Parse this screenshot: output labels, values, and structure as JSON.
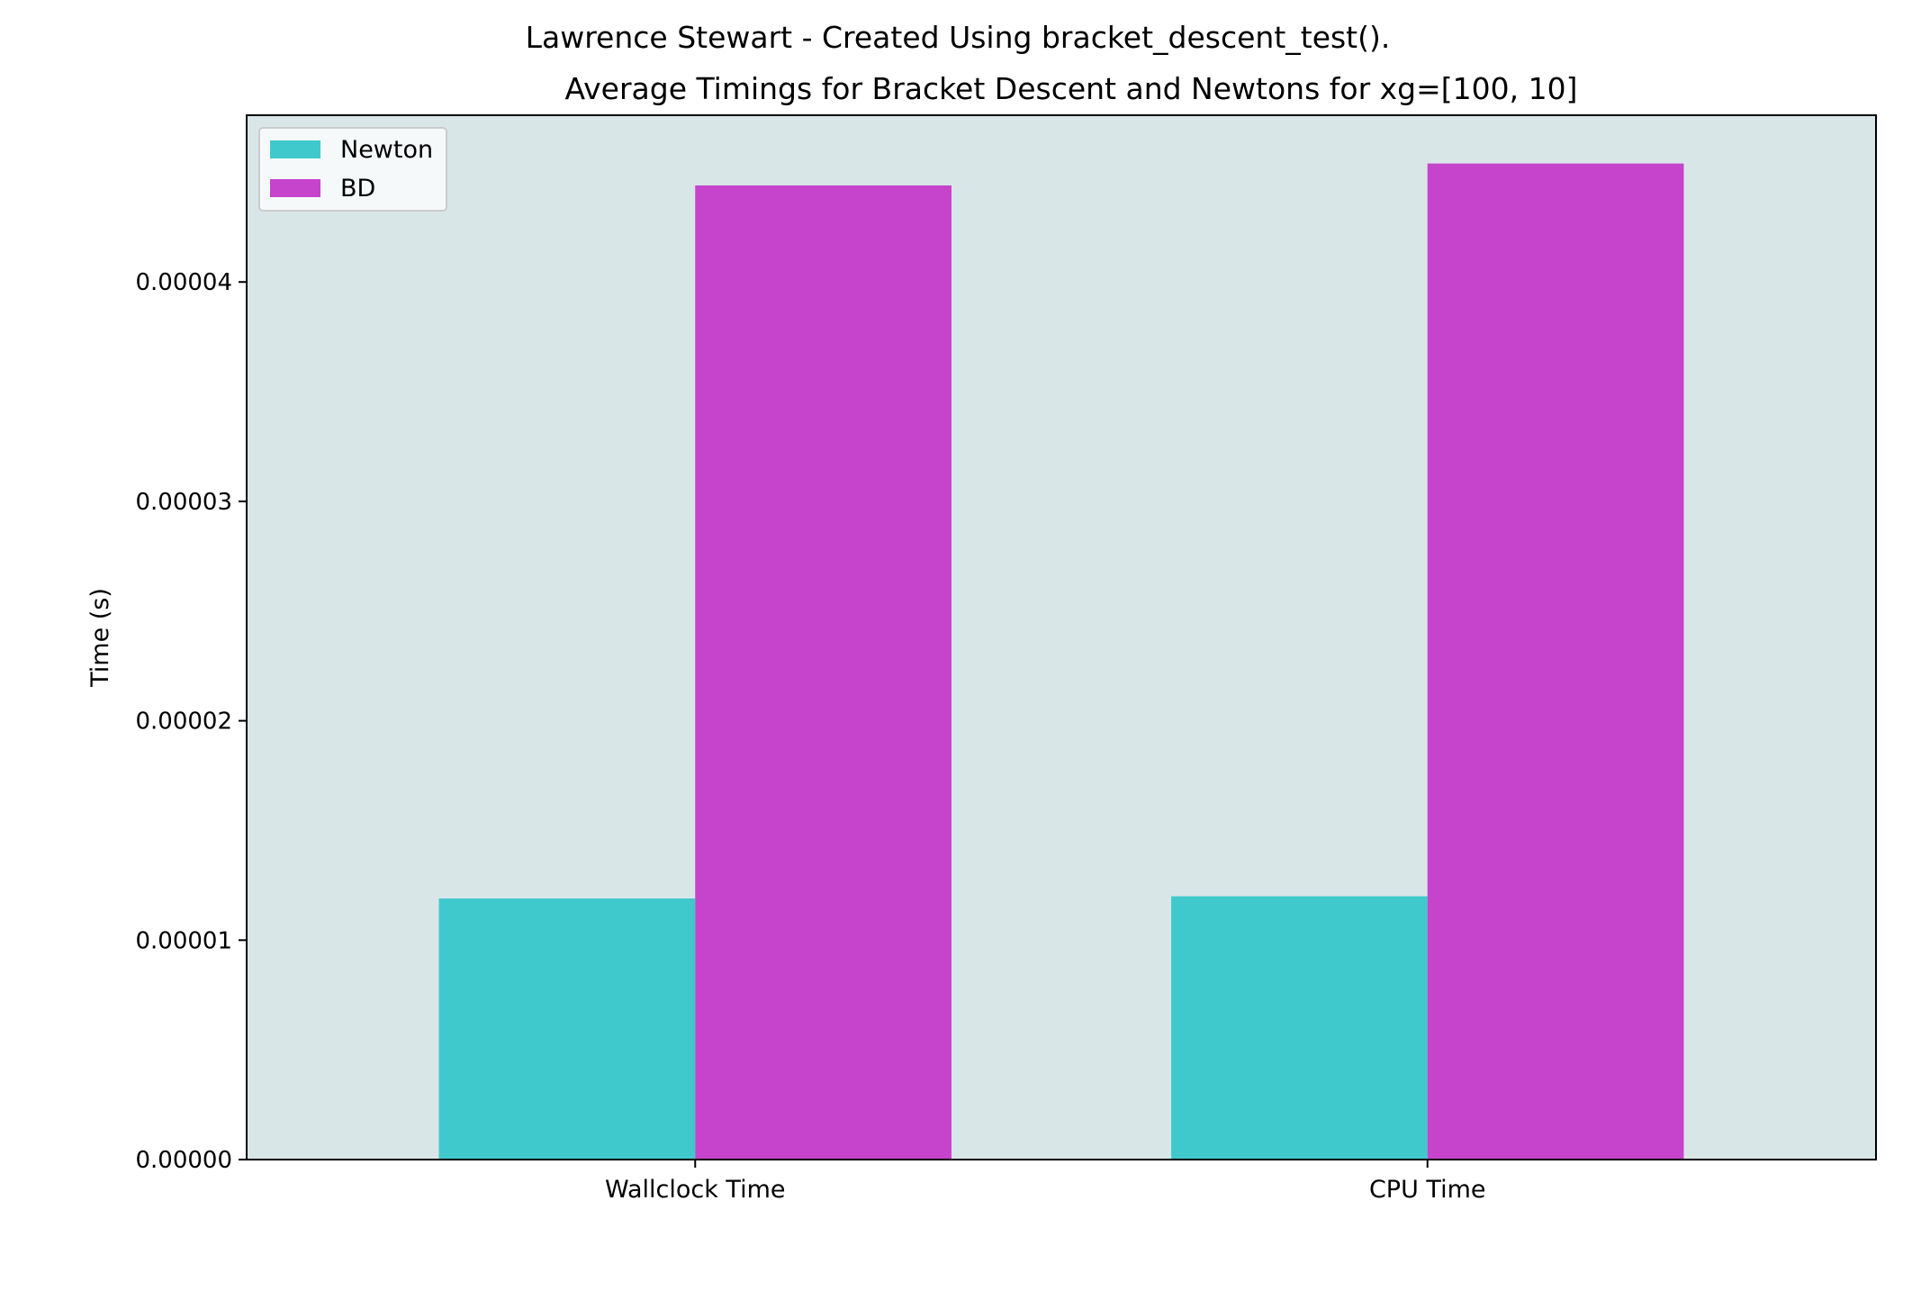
{
  "chart_data": {
    "type": "bar",
    "suptitle": "Lawrence Stewart - Created Using bracket_descent_test().",
    "title": "Average Timings for Bracket Descent and Newtons for xg=[100, 10]",
    "xlabel": "",
    "ylabel": "Time (s)",
    "categories": [
      "Wallclock Time",
      "CPU Time"
    ],
    "series": [
      {
        "name": "Newton",
        "color": "#40c9cc",
        "values": [
          1.19e-05,
          1.2e-05
        ]
      },
      {
        "name": "BD",
        "color": "#c544cb",
        "values": [
          4.44e-05,
          4.54e-05
        ]
      }
    ],
    "ylim": [
      0,
      4.76e-05
    ],
    "yticks": [
      0,
      1e-05,
      2e-05,
      3e-05,
      4e-05
    ],
    "ytick_labels": [
      "0.00000",
      "0.00001",
      "0.00002",
      "0.00003",
      "0.00004"
    ],
    "grid": false,
    "legend_position": "top-left",
    "plot_background": "#d9e6e8",
    "legend_background": "#f6f9fa"
  }
}
